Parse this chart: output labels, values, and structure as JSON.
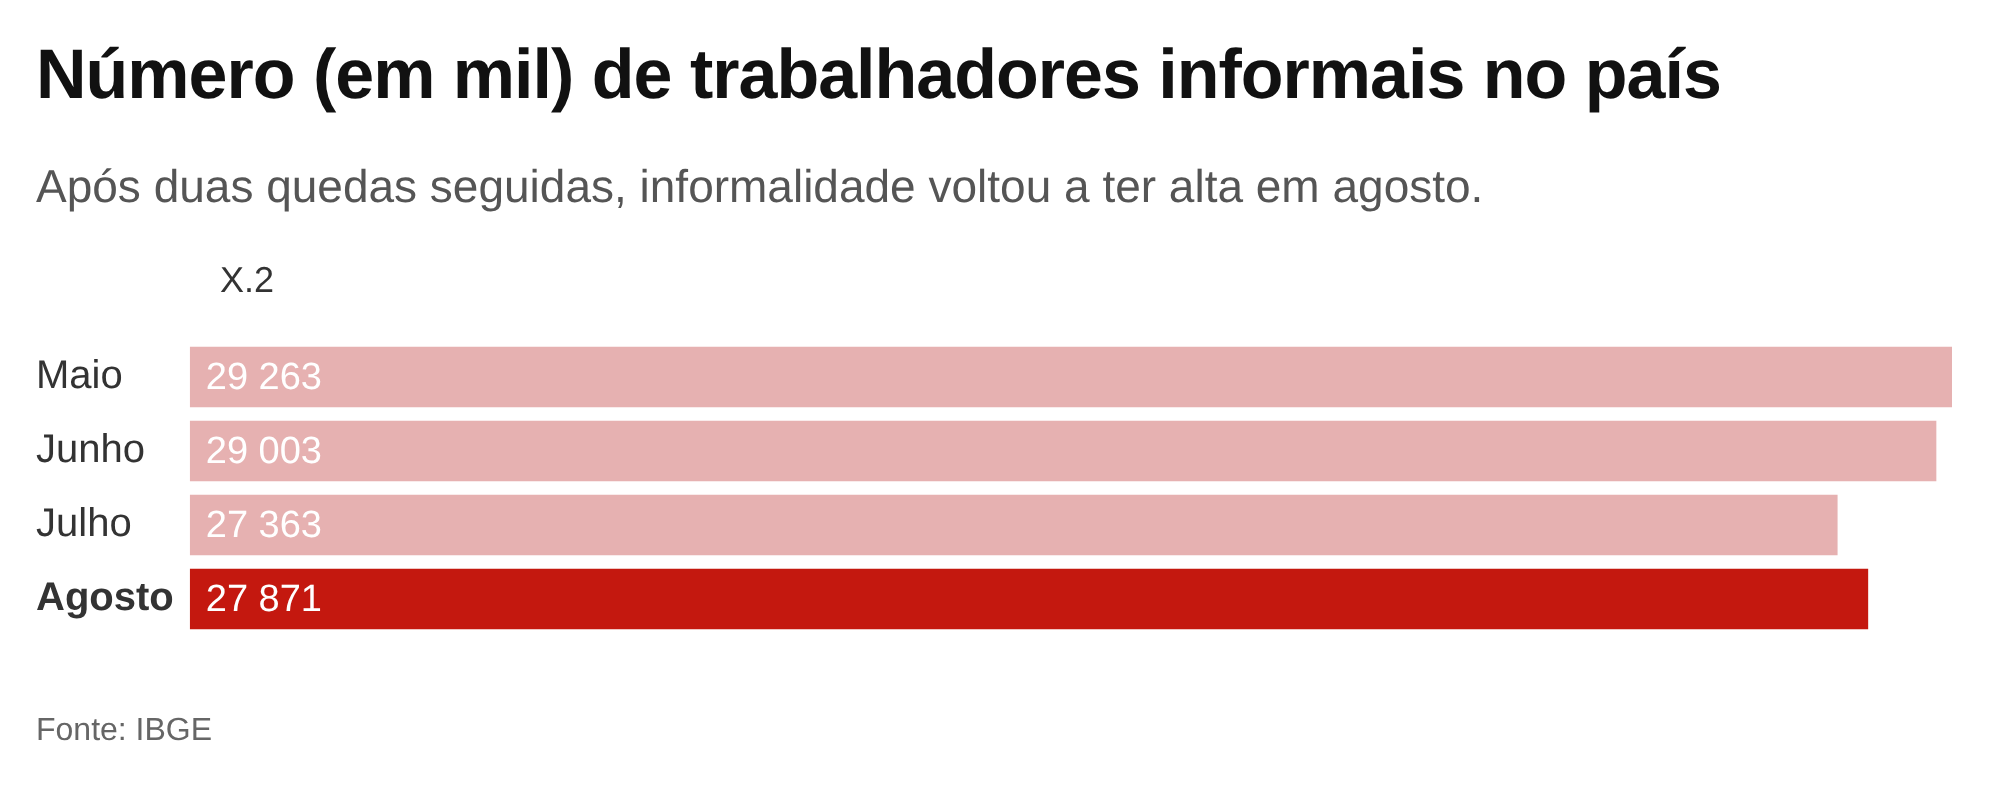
{
  "chart_data": {
    "type": "bar",
    "orientation": "horizontal",
    "title": "Número (em mil) de trabalhadores informais no país",
    "subtitle": "Após duas quedas seguidas, informalidade voltou a ter alta em agosto.",
    "categories": [
      "Maio",
      "Junho",
      "Julho",
      "Agosto"
    ],
    "series": [
      {
        "name": "X.2",
        "values": [
          29263,
          29003,
          27363,
          27871
        ],
        "colors": [
          "#e6b1b1",
          "#e6b1b1",
          "#e6b1b1",
          "#c4180f"
        ],
        "value_labels": [
          "29 263",
          "29 003",
          "27 363",
          "27 871"
        ]
      }
    ],
    "legend": false,
    "annotations": [
      "Fonte: IBGE"
    ]
  }
}
